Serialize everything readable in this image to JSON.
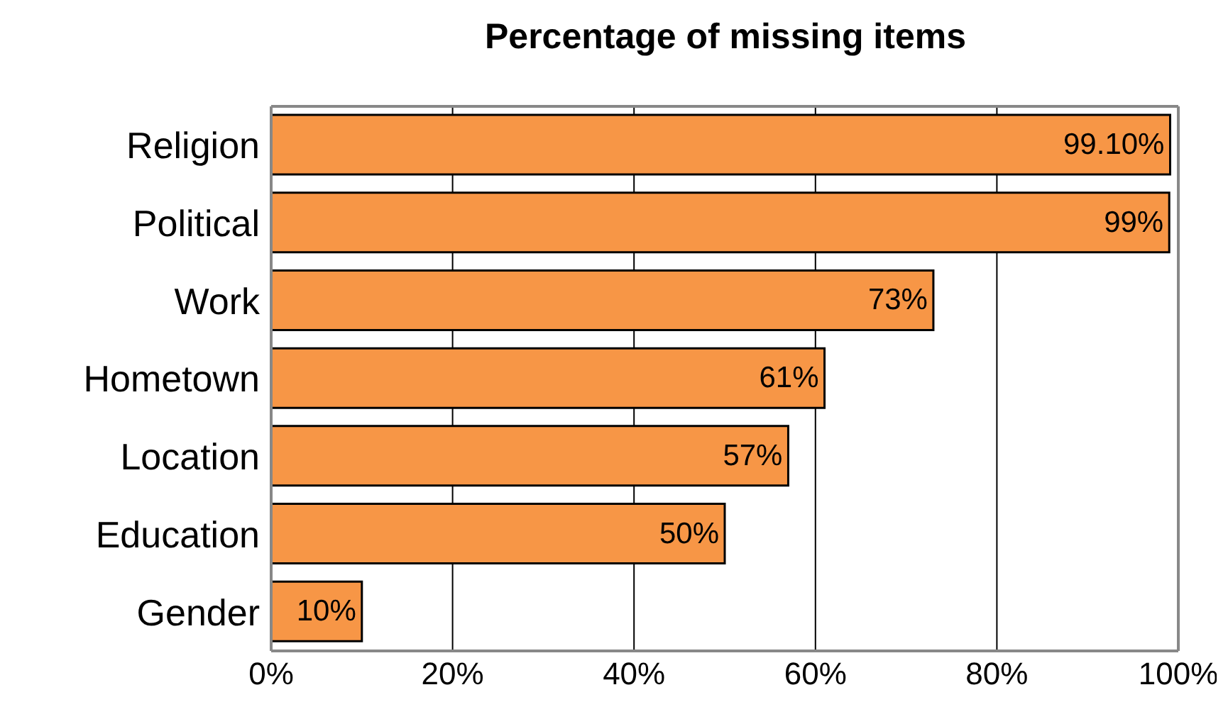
{
  "chart_data": {
    "type": "bar",
    "orientation": "horizontal",
    "title": "Percentage of missing items",
    "categories": [
      "Religion",
      "Political",
      "Work",
      "Hometown",
      "Location",
      "Education",
      "Gender"
    ],
    "values": [
      99.1,
      99,
      73,
      61,
      57,
      50,
      10
    ],
    "value_labels": [
      "99.10%",
      "99%",
      "73%",
      "61%",
      "57%",
      "50%",
      "10%"
    ],
    "color": "#f79646",
    "xlim": [
      0,
      100
    ],
    "xticks": [
      {
        "value": 0,
        "label": "0%"
      },
      {
        "value": 20,
        "label": "20%"
      },
      {
        "value": 40,
        "label": "40%"
      },
      {
        "value": 60,
        "label": "60%"
      },
      {
        "value": 80,
        "label": "80%"
      },
      {
        "value": 100,
        "label": "100%"
      }
    ],
    "grid": "x",
    "legend": false
  }
}
